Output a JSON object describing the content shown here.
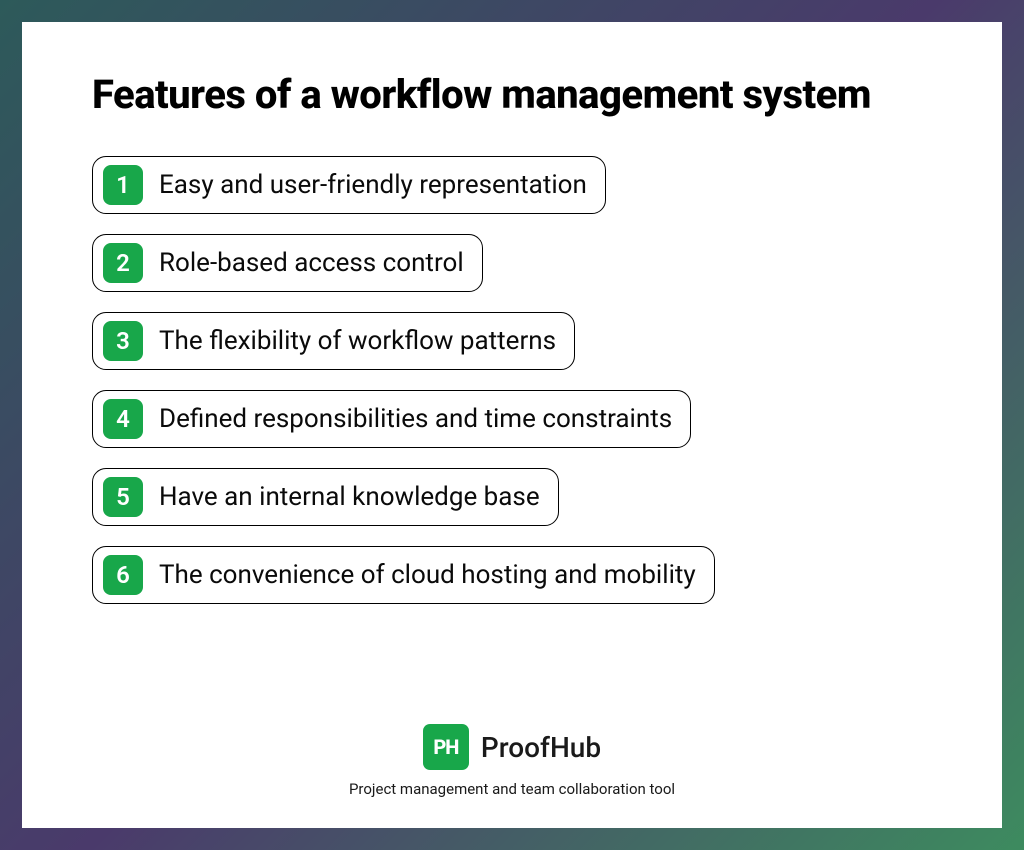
{
  "title": "Features of a workflow management system",
  "accent_color": "#18a74a",
  "badge_text_color": "#ffffff",
  "item_border_color": "#000000",
  "item_text_color": "#0a0a0a",
  "items": [
    {
      "num": "1",
      "label": "Easy and user-friendly representation"
    },
    {
      "num": "2",
      "label": "Role-based access control"
    },
    {
      "num": "3",
      "label": "The flexibility of workflow patterns"
    },
    {
      "num": "4",
      "label": "Defined responsibilities and time constraints"
    },
    {
      "num": "5",
      "label": "Have an internal knowledge base"
    },
    {
      "num": "6",
      "label": "The convenience of cloud hosting and mobility"
    }
  ],
  "brand": {
    "logo_text": "PH",
    "name": "ProofHub",
    "tagline": "Project management and team collaboration tool",
    "logo_bg": "#18a74a"
  },
  "border_gradient": {
    "from": "#2d5a5a",
    "mid": "#4a3a6b",
    "to": "#3d8b5f"
  }
}
